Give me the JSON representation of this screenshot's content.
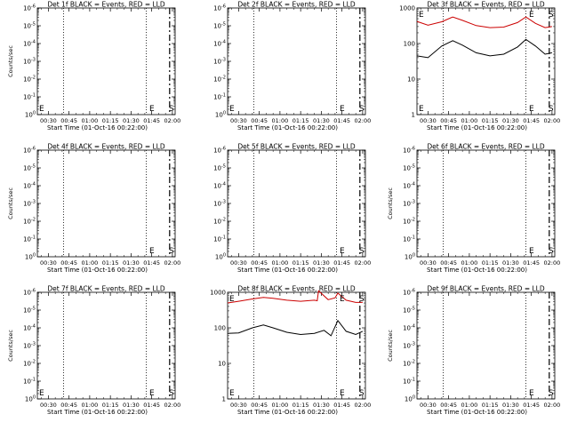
{
  "chart_data": [
    {
      "type": "line",
      "title": "Det 1f BLACK = Events, RED = LLD",
      "xlabel": "Start Time (01-Oct-16 00:22:00)",
      "ylabel": "Counts/sec",
      "y_scale": "log",
      "x_ticks": [
        "00:30",
        "00:45",
        "01:00",
        "01:15",
        "01:30",
        "01:45",
        "02:00"
      ],
      "y_ticks": [
        "10^0",
        "10^-1",
        "10^-2",
        "10^-3",
        "10^-4",
        "10^-5",
        "10^-6"
      ],
      "dotted_lines_x": [
        "00:41",
        "01:41"
      ],
      "dashed_line_x": "01:58",
      "markers": [
        {
          "label": "E",
          "x": "00:22"
        },
        {
          "label": "E",
          "x": "01:42"
        },
        {
          "label": "S",
          "x": "02:00"
        }
      ],
      "series": []
    },
    {
      "type": "line",
      "title": "Det 2f BLACK = Events, RED = LLD",
      "xlabel": "Start Time (01-Oct-16 00:22:00)",
      "ylabel": "",
      "y_scale": "log",
      "x_ticks": [
        "00:30",
        "00:45",
        "01:00",
        "01:15",
        "01:30",
        "01:45",
        "02:00"
      ],
      "y_ticks": [
        "10^0",
        "10^-1",
        "10^-2",
        "10^-3",
        "10^-4",
        "10^-5",
        "10^-6"
      ],
      "dotted_lines_x": [
        "00:41",
        "01:41"
      ],
      "dashed_line_x": "01:58",
      "markers": [
        {
          "label": "E",
          "x": "00:22"
        },
        {
          "label": "E",
          "x": "01:42"
        },
        {
          "label": "S",
          "x": "02:00"
        }
      ],
      "series": []
    },
    {
      "type": "line",
      "title": "Det 3f BLACK = Events, RED = LLD",
      "xlabel": "Start Time (01-Oct-16 00:22:00)",
      "ylabel": "",
      "y_scale": "log",
      "x_ticks": [
        "00:30",
        "00:45",
        "01:00",
        "01:15",
        "01:30",
        "01:45",
        "02:00"
      ],
      "y_ticks": [
        "1",
        "10",
        "100",
        "1000"
      ],
      "dotted_lines_x": [
        "00:41",
        "01:41"
      ],
      "dashed_line_x": "01:58",
      "markers": [
        {
          "label": "E",
          "x": "00:22"
        },
        {
          "label": "E",
          "x": "01:42"
        },
        {
          "label": "S",
          "x": "02:00"
        }
      ],
      "series": [
        {
          "color": "#cc0000",
          "x": [
            "00:22",
            "00:30",
            "00:40",
            "00:48",
            "00:55",
            "01:05",
            "01:15",
            "01:25",
            "01:35",
            "01:41",
            "01:48",
            "01:55",
            "02:00"
          ],
          "values": [
            420,
            330,
            410,
            560,
            450,
            320,
            280,
            290,
            390,
            560,
            370,
            280,
            300
          ]
        },
        {
          "color": "#000000",
          "x": [
            "00:22",
            "00:30",
            "00:40",
            "00:48",
            "00:55",
            "01:05",
            "01:15",
            "01:25",
            "01:35",
            "01:41",
            "01:48",
            "01:55",
            "02:00"
          ],
          "values": [
            45,
            40,
            85,
            120,
            90,
            55,
            45,
            50,
            80,
            130,
            85,
            50,
            55
          ]
        }
      ]
    },
    {
      "type": "line",
      "title": "Det 4f BLACK = Events, RED = LLD",
      "xlabel": "Start Time (01-Oct-16 00:22:00)",
      "ylabel": "Counts/sec",
      "y_scale": "log",
      "x_ticks": [
        "00:30",
        "00:45",
        "01:00",
        "01:15",
        "01:30",
        "01:45",
        "02:00"
      ],
      "y_ticks": [
        "10^0",
        "10^-1",
        "10^-2",
        "10^-3",
        "10^-4",
        "10^-5",
        "10^-6"
      ],
      "dotted_lines_x": [
        "00:41",
        "01:41"
      ],
      "dashed_line_x": "01:58",
      "markers": [
        {
          "label": "E",
          "x": "01:42"
        },
        {
          "label": "S",
          "x": "02:00"
        }
      ],
      "series": []
    },
    {
      "type": "line",
      "title": "Det 5f BLACK = Events, RED = LLD",
      "xlabel": "Start Time (01-Oct-16 00:22:00)",
      "ylabel": "",
      "y_scale": "log",
      "x_ticks": [
        "00:30",
        "00:45",
        "01:00",
        "01:15",
        "01:30",
        "01:45",
        "02:00"
      ],
      "y_ticks": [
        "10^0",
        "10^-1",
        "10^-2",
        "10^-3",
        "10^-4",
        "10^-5",
        "10^-6"
      ],
      "dotted_lines_x": [
        "00:41",
        "01:41"
      ],
      "dashed_line_x": "01:58",
      "markers": [
        {
          "label": "E",
          "x": "01:42"
        },
        {
          "label": "S",
          "x": "02:00"
        }
      ],
      "series": []
    },
    {
      "type": "line",
      "title": "Det 6f BLACK = Events, RED = LLD",
      "xlabel": "Start Time (01-Oct-16 00:22:00)",
      "ylabel": "Counts/sec",
      "y_scale": "log",
      "x_ticks": [
        "00:30",
        "00:45",
        "01:00",
        "01:15",
        "01:30",
        "01:45",
        "02:00"
      ],
      "y_ticks": [
        "10^0",
        "10^-1",
        "10^-2",
        "10^-3",
        "10^-4",
        "10^-5",
        "10^-6"
      ],
      "dotted_lines_x": [
        "00:41",
        "01:41"
      ],
      "dashed_line_x": "01:58",
      "markers": [
        {
          "label": "E",
          "x": "01:42"
        },
        {
          "label": "S",
          "x": "02:00"
        }
      ],
      "series": []
    },
    {
      "type": "line",
      "title": "Det 7f BLACK = Events, RED = LLD",
      "xlabel": "Start Time (01-Oct-16 00:22:00)",
      "ylabel": "Counts/sec",
      "y_scale": "log",
      "x_ticks": [
        "00:30",
        "00:45",
        "01:00",
        "01:15",
        "01:30",
        "01:45",
        "02:00"
      ],
      "y_ticks": [
        "10^0",
        "10^-1",
        "10^-2",
        "10^-3",
        "10^-4",
        "10^-5",
        "10^-6"
      ],
      "dotted_lines_x": [
        "00:41",
        "01:41"
      ],
      "dashed_line_x": "01:58",
      "markers": [
        {
          "label": "E",
          "x": "00:22"
        },
        {
          "label": "E",
          "x": "01:42"
        },
        {
          "label": "S",
          "x": "02:00"
        }
      ],
      "series": []
    },
    {
      "type": "line",
      "title": "Det 8f BLACK = Events, RED = LLD",
      "xlabel": "Start Time (01-Oct-16 00:22:00)",
      "ylabel": "",
      "y_scale": "log",
      "x_ticks": [
        "00:30",
        "00:45",
        "01:00",
        "01:15",
        "01:30",
        "01:45",
        "02:00"
      ],
      "y_ticks": [
        "1",
        "10",
        "100",
        "1000"
      ],
      "dotted_lines_x": [
        "00:41",
        "01:41"
      ],
      "dashed_line_x": "01:58",
      "markers": [
        {
          "label": "E",
          "x": "00:22"
        },
        {
          "label": "E",
          "x": "01:42"
        },
        {
          "label": "S",
          "x": "02:00"
        }
      ],
      "series": [
        {
          "color": "#cc0000",
          "x": [
            "00:22",
            "00:30",
            "00:40",
            "00:48",
            "00:55",
            "01:05",
            "01:15",
            "01:25",
            "01:27",
            "01:28",
            "01:35",
            "01:40",
            "01:42",
            "01:48",
            "01:55",
            "02:00"
          ],
          "values": [
            500,
            560,
            650,
            720,
            680,
            600,
            560,
            600,
            580,
            1100,
            620,
            700,
            950,
            600,
            520,
            520
          ]
        },
        {
          "color": "#000000",
          "x": [
            "00:22",
            "00:30",
            "00:40",
            "00:48",
            "00:55",
            "01:05",
            "01:15",
            "01:25",
            "01:32",
            "01:37",
            "01:42",
            "01:48",
            "01:55",
            "02:00"
          ],
          "values": [
            70,
            72,
            100,
            120,
            100,
            75,
            65,
            70,
            85,
            60,
            160,
            80,
            65,
            80
          ]
        }
      ]
    },
    {
      "type": "line",
      "title": "Det 9f BLACK = Events, RED = LLD",
      "xlabel": "Start Time (01-Oct-16 00:22:00)",
      "ylabel": "Counts/sec",
      "y_scale": "log",
      "x_ticks": [
        "00:30",
        "00:45",
        "01:00",
        "01:15",
        "01:30",
        "01:45",
        "02:00"
      ],
      "y_ticks": [
        "10^0",
        "10^-1",
        "10^-2",
        "10^-3",
        "10^-4",
        "10^-5",
        "10^-6"
      ],
      "dotted_lines_x": [
        "00:41",
        "01:41"
      ],
      "dashed_line_x": "01:58",
      "markers": [
        {
          "label": "E",
          "x": "01:42"
        },
        {
          "label": "S",
          "x": "02:00"
        }
      ],
      "series": []
    }
  ]
}
